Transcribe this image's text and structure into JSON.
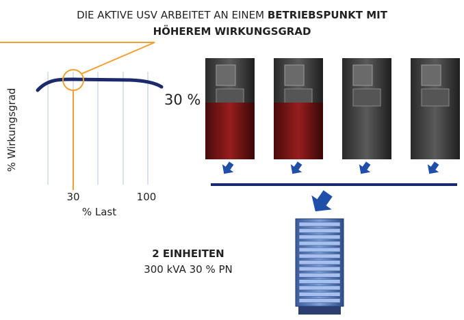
{
  "header": {
    "text": "DIE AKTIVE USV ARBEITET AN EINEM",
    "emphasis_lines": [
      "BETRIEBSPUNKT MIT",
      "HÖHEREM WIRKUNGSGRAD"
    ]
  },
  "graph": {
    "y_label": "% Wirkungsgrad",
    "x_label": "% Last",
    "x_tick_labels": [
      "30",
      "100"
    ],
    "callout": "30 %"
  },
  "result": {
    "title": "2 EINHEITEN",
    "detail": "300 kVA 30 % PN"
  }
}
